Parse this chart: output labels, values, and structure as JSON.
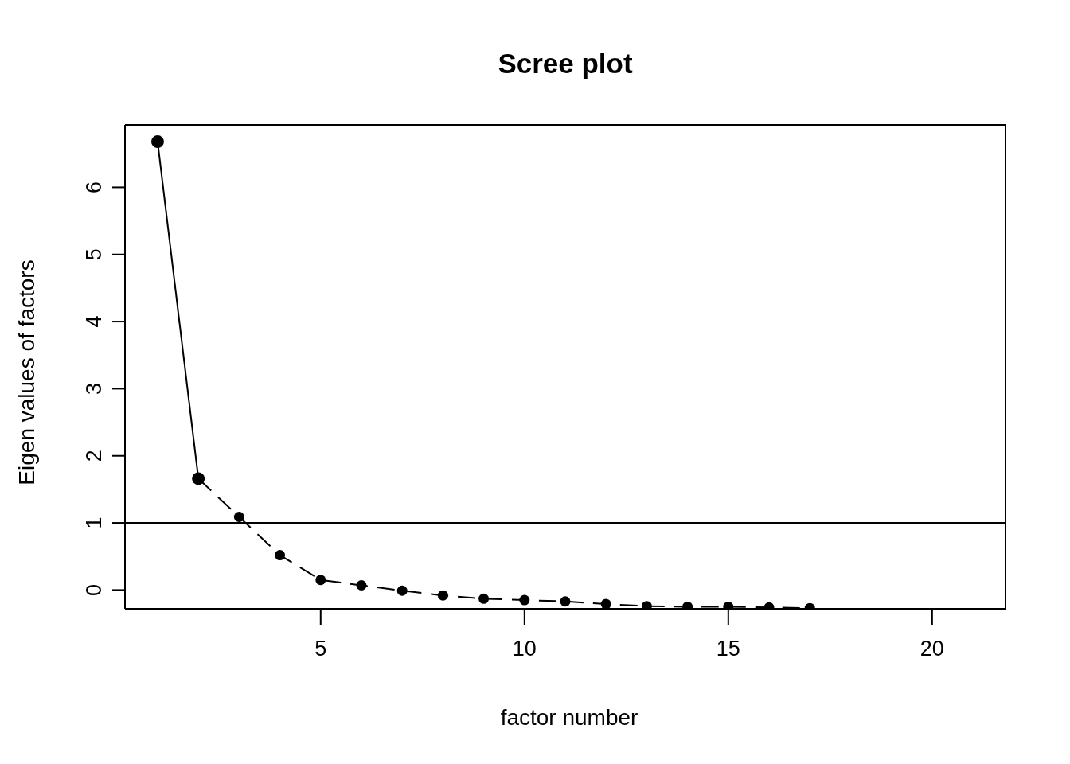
{
  "chart_data": {
    "type": "line",
    "title": "Scree plot",
    "xlabel": "factor number",
    "ylabel": "Eigen values of factors",
    "xlim": [
      0.2,
      21.8
    ],
    "xticks": [
      5,
      10,
      15,
      20
    ],
    "ylim": [
      -0.28,
      6.93
    ],
    "yticks": [
      0,
      1,
      2,
      3,
      4,
      5,
      6
    ],
    "series": [
      {
        "color": "#000000",
        "line_style": "solid",
        "marker": "circle",
        "x": [
          1,
          2
        ],
        "values": [
          6.68,
          1.66
        ]
      },
      {
        "color": "#000000",
        "line_style": "dashed",
        "marker": "circle",
        "x": [
          2,
          3,
          4,
          5,
          6,
          7,
          8,
          9,
          10,
          11,
          12,
          13,
          14,
          15,
          16,
          17
        ],
        "values": [
          1.66,
          1.09,
          0.52,
          0.15,
          0.07,
          -0.01,
          -0.08,
          -0.13,
          -0.15,
          -0.17,
          -0.21,
          -0.24,
          -0.25,
          -0.25,
          -0.26,
          -0.27
        ]
      }
    ],
    "ref_lines": [
      {
        "axis": "y",
        "value": 1,
        "color": "#000000",
        "line_style": "solid"
      }
    ],
    "grid": false,
    "legend": false
  }
}
